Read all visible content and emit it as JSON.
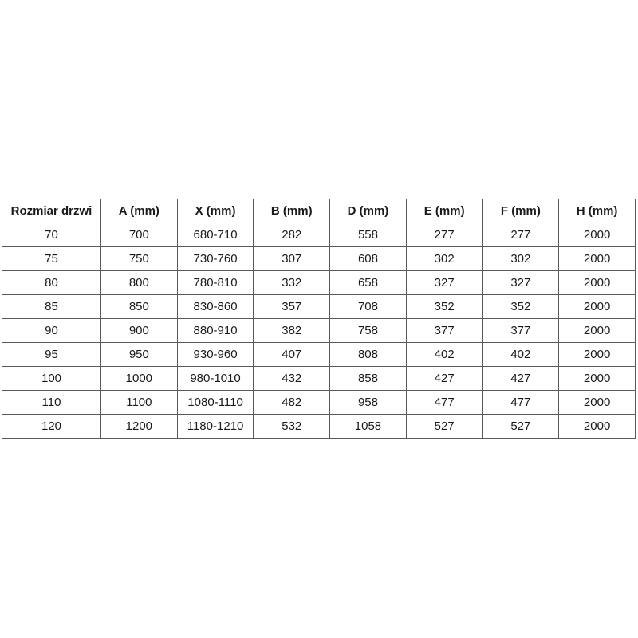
{
  "table": {
    "headers": [
      "Rozmiar drzwi",
      "A (mm)",
      "X (mm)",
      "B (mm)",
      "D (mm)",
      "E (mm)",
      "F (mm)",
      "H (mm)"
    ],
    "rows": [
      [
        "70",
        "700",
        "680-710",
        "282",
        "558",
        "277",
        "277",
        "2000"
      ],
      [
        "75",
        "750",
        "730-760",
        "307",
        "608",
        "302",
        "302",
        "2000"
      ],
      [
        "80",
        "800",
        "780-810",
        "332",
        "658",
        "327",
        "327",
        "2000"
      ],
      [
        "85",
        "850",
        "830-860",
        "357",
        "708",
        "352",
        "352",
        "2000"
      ],
      [
        "90",
        "900",
        "880-910",
        "382",
        "758",
        "377",
        "377",
        "2000"
      ],
      [
        "95",
        "950",
        "930-960",
        "407",
        "808",
        "402",
        "402",
        "2000"
      ],
      [
        "100",
        "1000",
        "980-1010",
        "432",
        "858",
        "427",
        "427",
        "2000"
      ],
      [
        "110",
        "1100",
        "1080-1110",
        "482",
        "958",
        "477",
        "477",
        "2000"
      ],
      [
        "120",
        "1200",
        "1180-1210",
        "532",
        "1058",
        "527",
        "527",
        "2000"
      ]
    ],
    "colors": {
      "border": "#595959",
      "text": "#1a1a1a",
      "background": "#ffffff"
    }
  }
}
